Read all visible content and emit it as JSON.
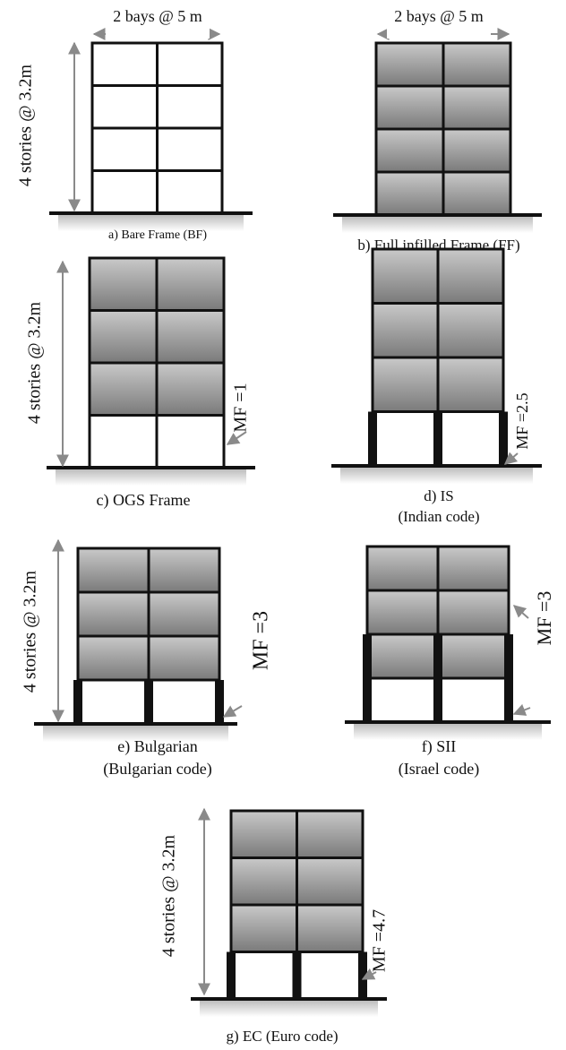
{
  "panels": [
    {
      "width_label": "2 bays @ 5 m",
      "height_label": "4 stories @ 3.2m",
      "caption": [
        "a) Bare Frame (BF)"
      ]
    },
    {
      "width_label": "2 bays @ 5 m",
      "caption": [
        "b) Full infilled Frame (FF)"
      ]
    },
    {
      "height_label": "4 stories @ 3.2m",
      "mf_label": "MF =1",
      "caption": [
        "c) OGS Frame"
      ]
    },
    {
      "mf_label": "MF =2.5",
      "caption": [
        "d) IS",
        "(Indian code)"
      ]
    },
    {
      "height_label": "4 stories @ 3.2m",
      "mf_label": "MF =3",
      "caption": [
        "e) Bulgarian",
        "(Bulgarian code)"
      ]
    },
    {
      "mf_label": "MF =3",
      "caption": [
        "f) SII",
        "(Israel code)"
      ]
    },
    {
      "height_label": "4 stories @ 3.2m",
      "mf_label": "MF =4.7",
      "caption": [
        "g) EC (Euro code)"
      ]
    }
  ]
}
